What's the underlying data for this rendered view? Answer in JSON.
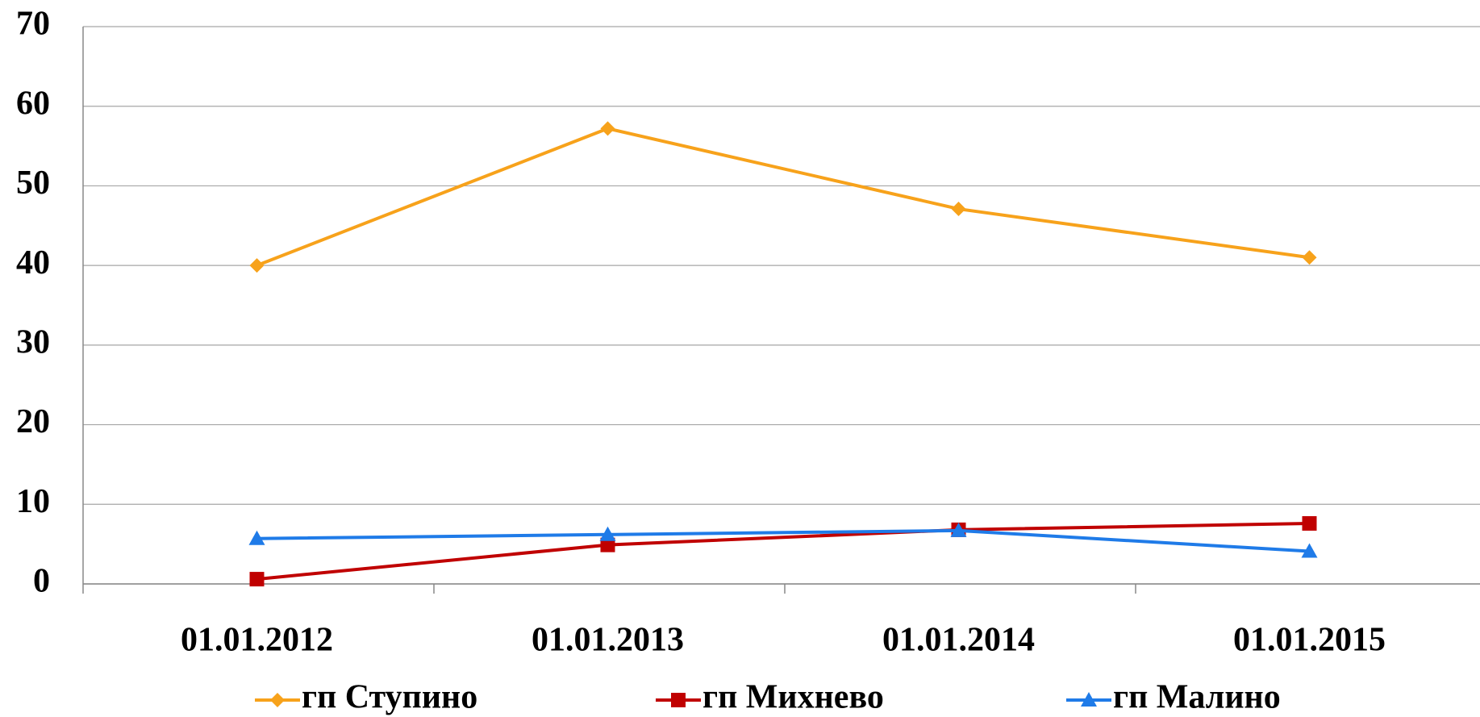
{
  "chart_data": {
    "type": "line",
    "categories": [
      "01.01.2012",
      "01.01.2013",
      "01.01.2014",
      "01.01.2015"
    ],
    "series": [
      {
        "name": "гп Ступино",
        "color": "#f7a21b",
        "marker": "diamond",
        "values": [
          40,
          57.2,
          47.1,
          41
        ]
      },
      {
        "name": "гп Михнево",
        "color": "#c00000",
        "marker": "square",
        "values": [
          0.6,
          4.9,
          6.8,
          7.6
        ]
      },
      {
        "name": "гп Малино",
        "color": "#1f7be8",
        "marker": "triangle",
        "values": [
          5.7,
          6.2,
          6.7,
          4.1
        ]
      }
    ],
    "ylim": [
      0,
      70
    ],
    "yticks": [
      0,
      10,
      20,
      30,
      40,
      50,
      60,
      70
    ],
    "grid": true,
    "legend": "bottom"
  }
}
